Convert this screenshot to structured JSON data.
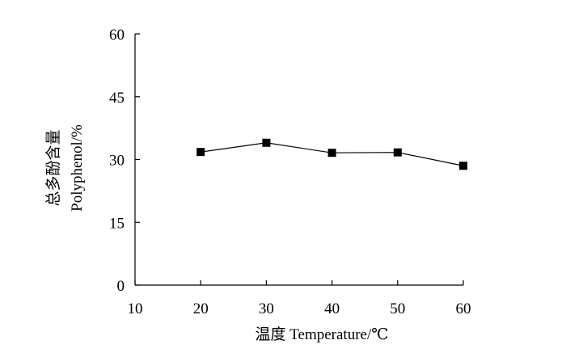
{
  "chart_data": {
    "type": "line",
    "x": [
      20,
      30,
      40,
      50,
      60
    ],
    "values": [
      31.8,
      34.0,
      31.6,
      31.7,
      28.5
    ],
    "xlim": [
      10,
      60
    ],
    "ylim": [
      0,
      60
    ],
    "xticks": [
      "10",
      "20",
      "30",
      "40",
      "50",
      "60"
    ],
    "yticks": [
      "0",
      "15",
      "30",
      "45",
      "60"
    ],
    "xlabel": "温度 Temperature/℃",
    "ylabel_cn": "总多酚含量",
    "ylabel_en": "Polyphenol/%",
    "marker": "square",
    "color": "#000000",
    "grid": false
  }
}
